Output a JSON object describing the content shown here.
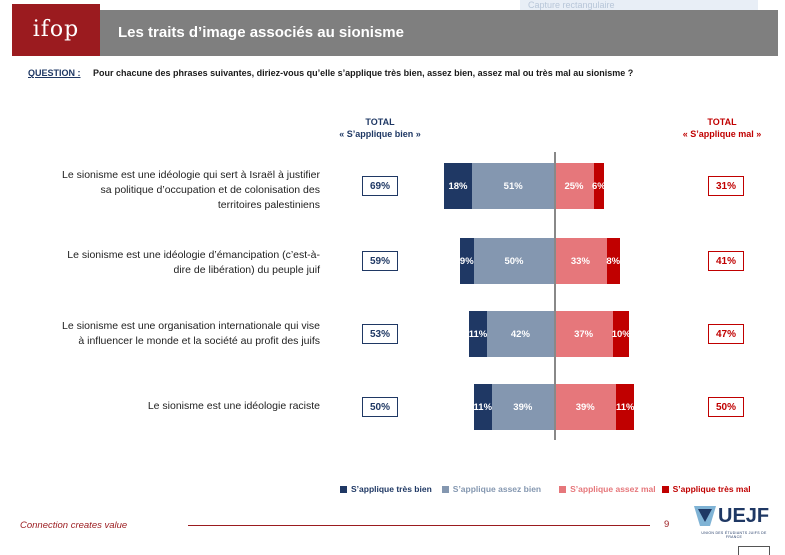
{
  "ghost_text": "Capture rectangulaire",
  "header": {
    "logo": "ifop",
    "title": "Les traits d’image associés au sionisme"
  },
  "question": {
    "label": "QUESTION :",
    "text": "Pour chacune des phrases suivantes, diriez-vous qu’elle s’applique très bien, assez bien, assez mal ou très mal au sionisme ?"
  },
  "columns": {
    "good": {
      "line1": "TOTAL",
      "line2": "« S’applique bien »"
    },
    "bad": {
      "line1": "TOTAL",
      "line2": "« S’applique mal »"
    }
  },
  "chart_data": {
    "type": "bar",
    "orientation": "horizontal-diverging",
    "categories": [
      "Le sionisme est une idéologie qui sert à Israël à justifier sa politique d’occupation et de colonisation des territoires palestiniens",
      "Le sionisme est une idéologie d’émancipation (c’est-à-dire de libération) du peuple juif",
      "Le sionisme est une organisation internationale qui vise à influencer le monde et la société au profit des juifs",
      "Le sionisme est une idéologie raciste"
    ],
    "series": [
      {
        "name": "S’applique très bien",
        "color": "#1f3864",
        "values": [
          18,
          9,
          11,
          11
        ],
        "labels": [
          "18%",
          "9%",
          "11%",
          "11%"
        ]
      },
      {
        "name": "S’applique assez bien",
        "color": "#8497b0",
        "values": [
          51,
          50,
          42,
          39
        ],
        "labels": [
          "51%",
          "50%",
          "42%",
          "39%"
        ]
      },
      {
        "name": "S’applique assez mal",
        "color": "#e6777b",
        "values": [
          25,
          33,
          37,
          39
        ],
        "labels": [
          "25%",
          "33%",
          "37%",
          "39%"
        ]
      },
      {
        "name": "S’applique très mal",
        "color": "#c00000",
        "values": [
          6,
          8,
          10,
          11
        ],
        "labels": [
          "6%",
          "8%",
          "10%",
          "11%"
        ]
      }
    ],
    "total_good": [
      "69%",
      "59%",
      "53%",
      "50%"
    ],
    "total_bad": [
      "31%",
      "41%",
      "47%",
      "50%"
    ],
    "legend_position": "bottom-right"
  },
  "row_lines": [
    [
      "Le sionisme est une idéologie qui sert à Israël à justifier",
      "sa politique d’occupation et de colonisation des",
      "territoires palestiniens"
    ],
    [
      "Le sionisme est une idéologie d’émancipation (c’est-à-",
      "dire de libération) du peuple juif"
    ],
    [
      "Le sionisme est une organisation internationale qui vise",
      "à influencer le monde et la société au profit des juifs"
    ],
    [
      "Le sionisme est une idéologie raciste"
    ]
  ],
  "footer": {
    "tagline": "Connection creates value",
    "page": "9",
    "brand": "UEJF",
    "brand_sub": "UNION DES ÉTUDIANTS JUIFS DE FRANCE"
  }
}
